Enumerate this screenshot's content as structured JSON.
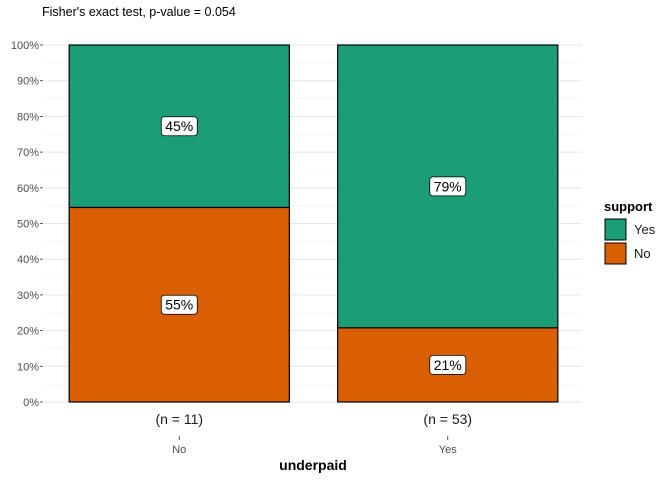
{
  "chart_data": {
    "type": "bar",
    "stacked": true,
    "percent": true,
    "subtitle": "Fisher's exact test, p-value = 0.054",
    "categories": [
      "No",
      "Yes"
    ],
    "category_counts": [
      "(n = 11)",
      "(n = 53)"
    ],
    "xlabel": "underpaid",
    "ylabel": "",
    "ylim": [
      0,
      100
    ],
    "yticks": [
      "0%",
      "10%",
      "20%",
      "30%",
      "40%",
      "50%",
      "60%",
      "70%",
      "80%",
      "90%",
      "100%"
    ],
    "legend": {
      "title": "support",
      "position": "right",
      "entries": [
        "Yes",
        "No"
      ]
    },
    "grid": true,
    "series": [
      {
        "name": "No",
        "color": "#D95F02",
        "values": [
          54.5,
          20.8
        ],
        "labels": [
          "55%",
          "21%"
        ]
      },
      {
        "name": "Yes",
        "color": "#1B9E77",
        "values": [
          45.5,
          79.2
        ],
        "labels": [
          "45%",
          "79%"
        ]
      }
    ]
  }
}
